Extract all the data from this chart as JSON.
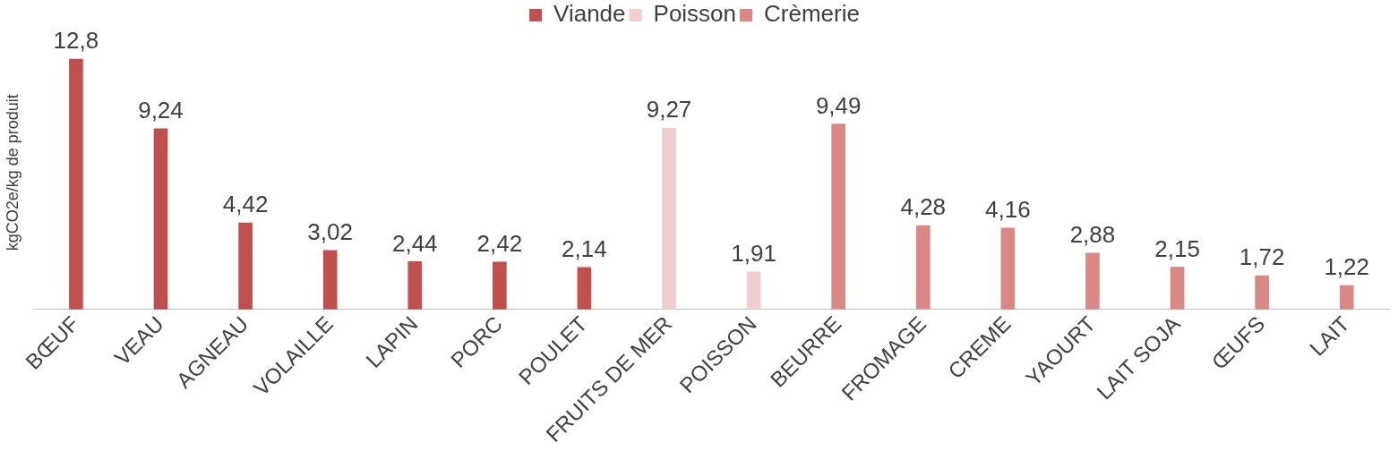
{
  "chart_data": {
    "type": "bar",
    "ylabel": "kgCO2e/kg de produit",
    "legend": "top",
    "grid": false,
    "tick_labels": "x",
    "categories": [
      "BŒUF",
      "VEAU",
      "AGNEAU",
      "VOLAILLE",
      "LAPIN",
      "PORC",
      "POULET",
      "FRUITS DE MER",
      "POISSON",
      "BEURRE",
      "FROMAGE",
      "CREME",
      "YAOURT",
      "LAIT SOJA",
      "ŒUFS",
      "LAIT"
    ],
    "series": [
      {
        "name": "Viande",
        "color": "#c0504d",
        "values": [
          12.8,
          9.24,
          4.42,
          3.02,
          2.44,
          2.42,
          2.14,
          null,
          null,
          null,
          null,
          null,
          null,
          null,
          null,
          null
        ],
        "value_labels": [
          "12,8",
          "9,24",
          "4,42",
          "3,02",
          "2,44",
          "2,42",
          "2,14",
          null,
          null,
          null,
          null,
          null,
          null,
          null,
          null,
          null
        ]
      },
      {
        "name": "Poisson",
        "color": "#f2cdcd",
        "values": [
          null,
          null,
          null,
          null,
          null,
          null,
          null,
          9.27,
          1.91,
          null,
          null,
          null,
          null,
          null,
          null,
          null
        ],
        "value_labels": [
          null,
          null,
          null,
          null,
          null,
          null,
          null,
          "9,27",
          "1,91",
          null,
          null,
          null,
          null,
          null,
          null,
          null
        ]
      },
      {
        "name": "Crèmerie",
        "color": "#d98886",
        "values": [
          null,
          null,
          null,
          null,
          null,
          null,
          null,
          null,
          null,
          9.49,
          4.28,
          4.16,
          2.88,
          2.15,
          1.72,
          1.22
        ],
        "value_labels": [
          null,
          null,
          null,
          null,
          null,
          null,
          null,
          null,
          null,
          "9,49",
          "4,28",
          "4,16",
          "2,88",
          "2,15",
          "1,72",
          "1,22"
        ]
      }
    ]
  }
}
